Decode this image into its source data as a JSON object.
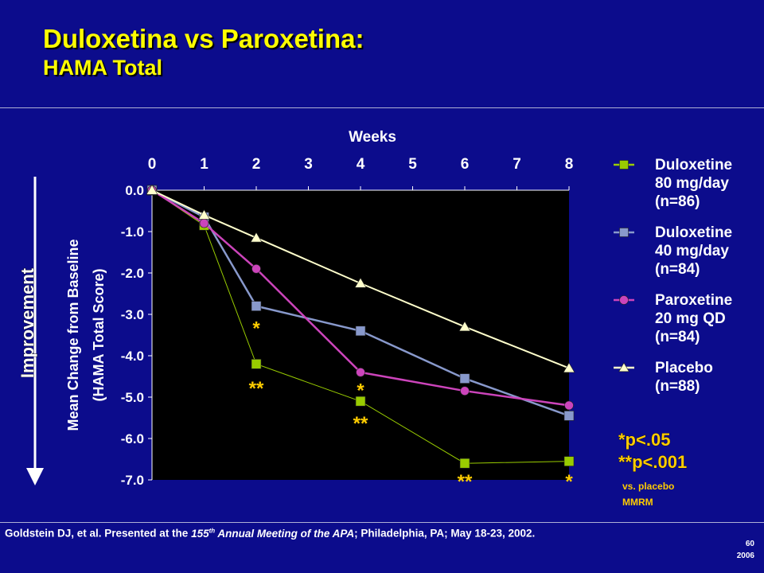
{
  "slide": {
    "title": "Duloxetina vs Paroxetina:",
    "subtitle": "HAMA Total",
    "citation_prefix": "Goldstein DJ, et al. Presented at the ",
    "citation_meeting_num": "155",
    "citation_meeting_sup": "th",
    "citation_meeting_rest": " Annual Meeting of the APA",
    "citation_suffix": "; Philadelphia, PA; May 18-23, 2002.",
    "slide_number": "60",
    "slide_year": "2006",
    "improvement_label": "Improvement",
    "pvalue_1": "*p<.05",
    "pvalue_2": "**p<.001",
    "pvalue_note_1": "vs. placebo",
    "pvalue_note_2": "MMRM"
  },
  "colors": {
    "background": "#0c0c8c",
    "plot_area": "#000000",
    "title": "#ffff00",
    "significance": "#ffcc00",
    "duloxetine80": "#99cc00",
    "duloxetine40": "#8899cc",
    "paroxetine": "#cc44bb",
    "placebo": "#ffffcc"
  },
  "chart_data": {
    "type": "line",
    "xlabel": "Weeks",
    "ylabel_line1": "Mean Change from Baseline",
    "ylabel_line2": "(HAMA Total Score)",
    "xlim": [
      0,
      8
    ],
    "ylim": [
      -7.0,
      0.0
    ],
    "x_ticks": [
      "0",
      "1",
      "2",
      "3",
      "4",
      "5",
      "6",
      "7",
      "8"
    ],
    "y_ticks": [
      "0.0",
      "-1.0",
      "-2.0",
      "-3.0",
      "-4.0",
      "-5.0",
      "-6.0",
      "-7.0"
    ],
    "legend_position": "right",
    "grid": false,
    "series": [
      {
        "name_lines": [
          "Duloxetine",
          "80 mg/day",
          "(n=86)"
        ],
        "marker": "square",
        "color_key": "duloxetine80",
        "points": [
          [
            0,
            0.0
          ],
          [
            1,
            -0.85
          ],
          [
            2,
            -4.2
          ],
          [
            4,
            -5.1
          ],
          [
            6,
            -6.6
          ],
          [
            8,
            -6.55
          ]
        ]
      },
      {
        "name_lines": [
          "Duloxetine",
          "40 mg/day",
          "(n=84)"
        ],
        "marker": "square",
        "color_key": "duloxetine40",
        "points": [
          [
            0,
            0.0
          ],
          [
            1,
            -0.65
          ],
          [
            2,
            -2.8
          ],
          [
            4,
            -3.4
          ],
          [
            6,
            -4.55
          ],
          [
            8,
            -5.45
          ]
        ]
      },
      {
        "name_lines": [
          "Paroxetine",
          "20 mg QD",
          "(n=84)"
        ],
        "marker": "circle",
        "color_key": "paroxetine",
        "points": [
          [
            0,
            0.0
          ],
          [
            1,
            -0.8
          ],
          [
            2,
            -1.9
          ],
          [
            4,
            -4.4
          ],
          [
            6,
            -4.85
          ],
          [
            8,
            -5.2
          ]
        ]
      },
      {
        "name_lines": [
          "Placebo",
          "(n=88)"
        ],
        "marker": "triangle",
        "color_key": "placebo",
        "points": [
          [
            0,
            0.0
          ],
          [
            1,
            -0.6
          ],
          [
            2,
            -1.15
          ],
          [
            4,
            -2.25
          ],
          [
            6,
            -3.3
          ],
          [
            8,
            -4.3
          ]
        ]
      }
    ],
    "annotations": [
      {
        "text": "*",
        "x": 2,
        "y": -3.3
      },
      {
        "text": "**",
        "x": 2,
        "y": -4.75
      },
      {
        "text": "*",
        "x": 4,
        "y": -4.8
      },
      {
        "text": "**",
        "x": 4,
        "y": -5.6
      },
      {
        "text": "**",
        "x": 6,
        "y": -7.0
      },
      {
        "text": "*",
        "x": 8,
        "y": -7.0
      }
    ]
  }
}
